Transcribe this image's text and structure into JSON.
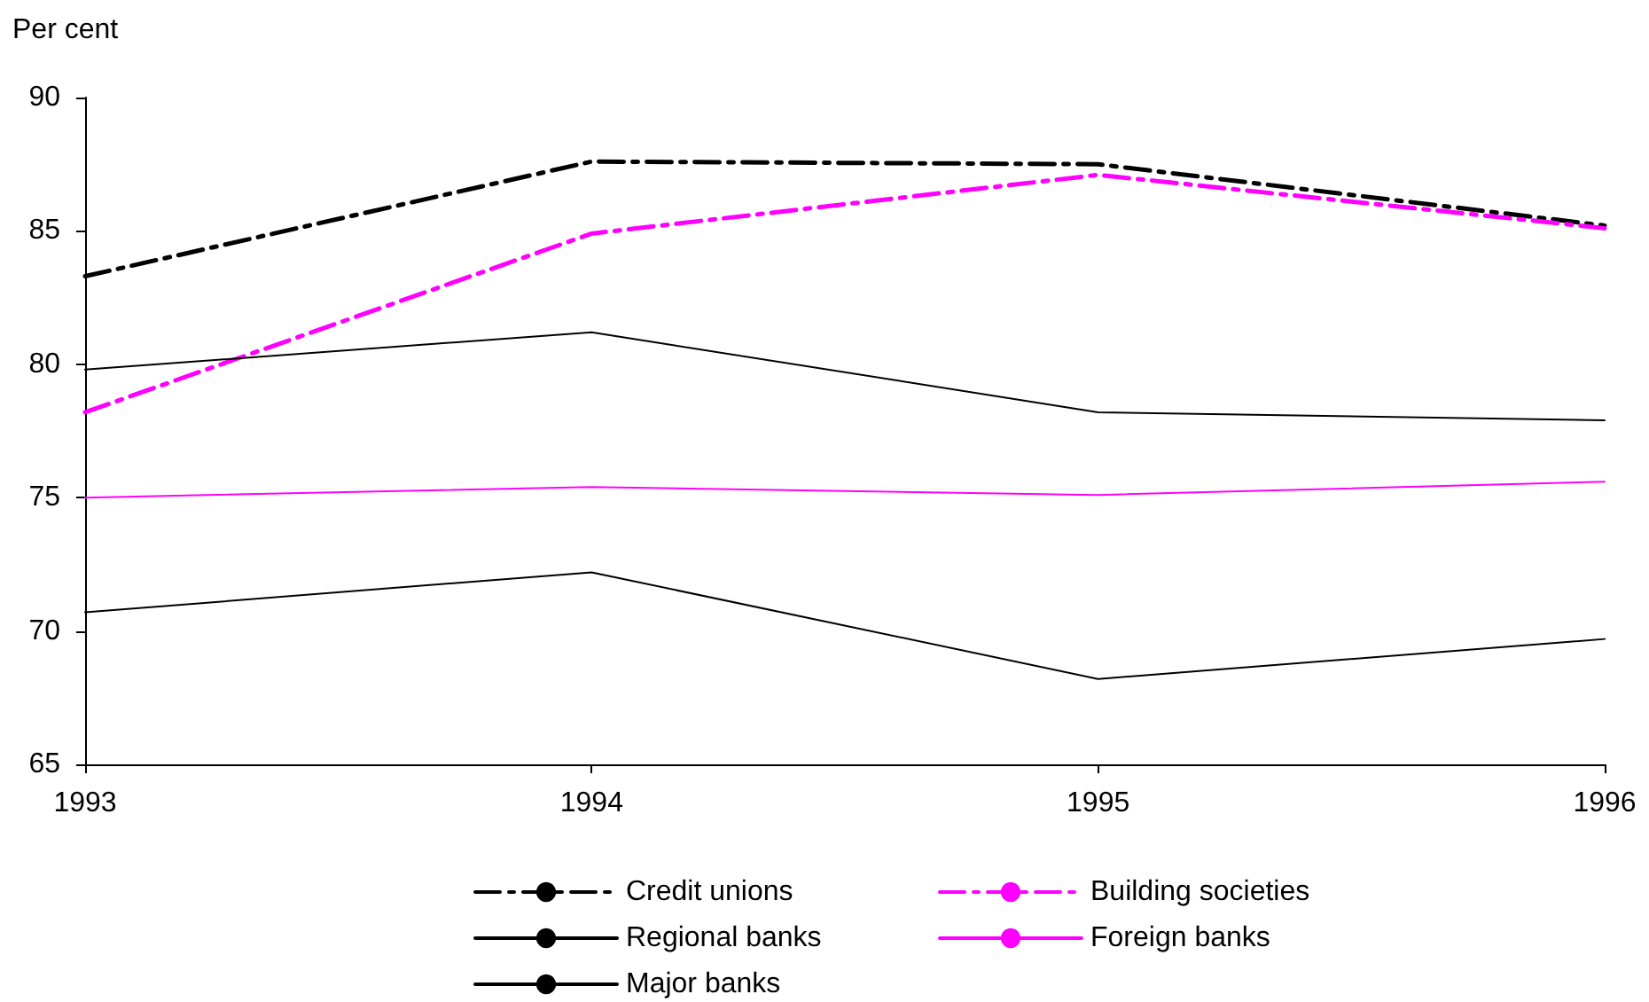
{
  "chart_data": {
    "type": "line",
    "ylabel": "Per cent",
    "x": [
      1993,
      1994,
      1995,
      1996
    ],
    "xlim": [
      1993,
      1996
    ],
    "xticks": [
      1993,
      1994,
      1995,
      1996
    ],
    "ylim": [
      65,
      90
    ],
    "yticks": [
      65,
      70,
      75,
      80,
      85,
      90
    ],
    "grid": false,
    "legend": "bottom",
    "marker": "none",
    "series": [
      {
        "name": "Credit unions",
        "color": "#000000",
        "line_style": "dashed",
        "values": [
          83.3,
          87.6,
          87.5,
          85.2
        ]
      },
      {
        "name": "Building societies",
        "color": "#ff00ff",
        "line_style": "dashed",
        "values": [
          78.2,
          84.9,
          87.1,
          85.1
        ]
      },
      {
        "name": "Regional banks",
        "color": "#000000",
        "line_style": "solid",
        "values": [
          79.8,
          81.2,
          78.2,
          77.9
        ]
      },
      {
        "name": "Foreign banks",
        "color": "#ff00ff",
        "line_style": "solid",
        "values": [
          75.0,
          75.4,
          75.1,
          75.6
        ]
      },
      {
        "name": "Major banks",
        "color": "#000000",
        "line_style": "solid",
        "values": [
          70.7,
          72.2,
          68.2,
          69.7
        ]
      }
    ]
  }
}
